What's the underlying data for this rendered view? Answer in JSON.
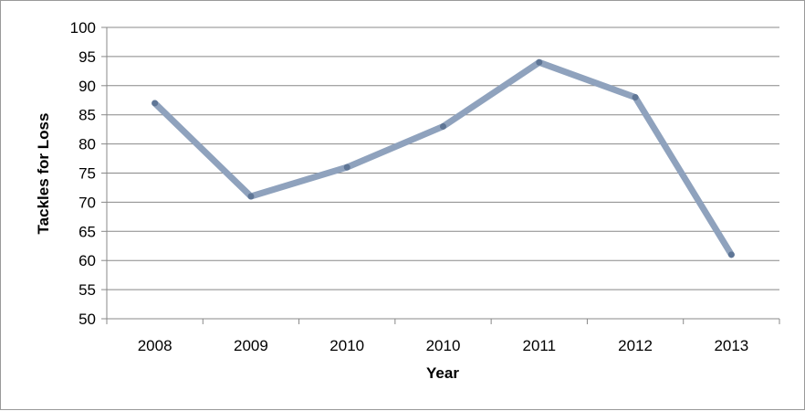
{
  "chart_data": {
    "type": "line",
    "categories": [
      "2008",
      "2009",
      "2010",
      "2010",
      "2011",
      "2012",
      "2013"
    ],
    "series": [
      {
        "values": [
          87,
          71,
          76,
          83,
          94,
          88,
          61
        ],
        "color": "#8fa2bd"
      }
    ],
    "xlabel": "Year",
    "ylabel": "Tackles for Loss",
    "ylim": [
      50,
      100
    ],
    "yticks": [
      50,
      55,
      60,
      65,
      70,
      75,
      80,
      85,
      90,
      95,
      100
    ],
    "grid": true,
    "legend": "none",
    "marker_color": "#5f7696",
    "gridline_color": "#888888"
  }
}
